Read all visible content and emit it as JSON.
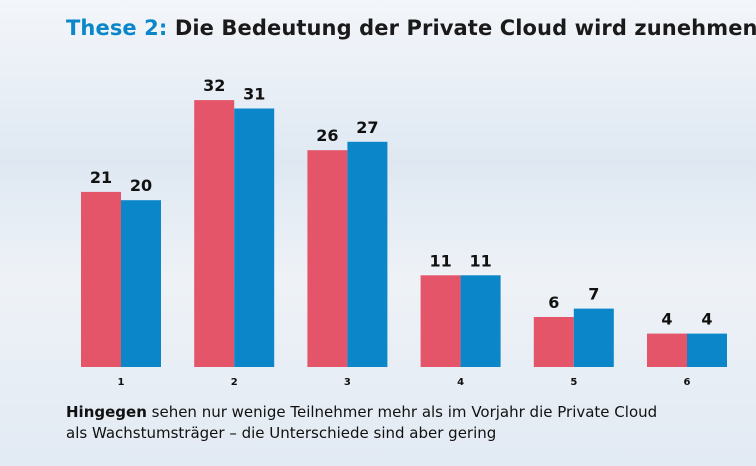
{
  "header": {
    "title_prefix": "These 2:",
    "title_main": "Die Bedeutung der Private Cloud wird zunehmen"
  },
  "caption": {
    "lead": "Hingegen",
    "line1": "sehen nur wenige Teilnehmer mehr als im Vorjahr die Private Cloud",
    "line2": "als Wachstumsträger – die Unterschiede sind aber gering"
  },
  "colors": {
    "series_a": "#e5556a",
    "series_b": "#0a86c9",
    "title_accent": "#0a86c9"
  },
  "chart_data": {
    "type": "bar",
    "title": "These 2: Die Bedeutung der Private Cloud wird zunehmen",
    "categories": [
      "1",
      "2",
      "3",
      "4",
      "5",
      "6"
    ],
    "series": [
      {
        "values": [
          21,
          32,
          26,
          11,
          6,
          4
        ]
      },
      {
        "values": [
          20,
          31,
          27,
          11,
          7,
          4
        ]
      }
    ],
    "ylim": [
      0,
      32
    ],
    "grid": false,
    "legend": "none"
  }
}
